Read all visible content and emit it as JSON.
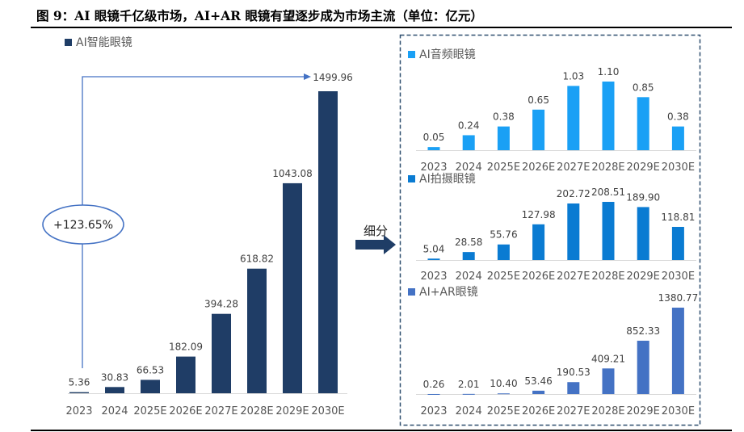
{
  "title": "图 9：AI 眼镜千亿级市场，AI+AR 眼镜有望逐步成为市场主流（单位：亿元）",
  "growth_label": "+123.65%",
  "breakdown_label": "细分",
  "chart_data": [
    {
      "type": "bar",
      "categories": [
        "2023",
        "2024",
        "2025E",
        "2026E",
        "2027E",
        "2028E",
        "2029E",
        "2030E"
      ],
      "series": [
        {
          "name": "AI智能眼镜",
          "values": [
            5.36,
            30.83,
            66.53,
            182.09,
            394.28,
            618.82,
            1043.08,
            1499.96
          ],
          "labels": [
            "5.36",
            "30.83",
            "66.53",
            "182.09",
            "394.28",
            "618.82",
            "1043.08",
            "1499.96"
          ]
        }
      ],
      "color": "#1F3D66",
      "annotation": "+123.65%",
      "grid": false,
      "legend": "top-left"
    },
    {
      "type": "bar",
      "categories": [
        "2023",
        "2024",
        "2025E",
        "2026E",
        "2027E",
        "2028E",
        "2029E",
        "2030E"
      ],
      "series": [
        {
          "name": "AI音频眼镜",
          "values": [
            0.05,
            0.24,
            0.38,
            0.65,
            1.03,
            1.1,
            0.85,
            0.38
          ],
          "labels": [
            "0.05",
            "0.24",
            "0.38",
            "0.65",
            "1.03",
            "1.10",
            "0.85",
            "0.38"
          ]
        }
      ],
      "color": "#1AA0F5",
      "grid": false,
      "legend": "top-left"
    },
    {
      "type": "bar",
      "categories": [
        "2023",
        "2024",
        "2025E",
        "2026E",
        "2027E",
        "2028E",
        "2029E",
        "2030E"
      ],
      "series": [
        {
          "name": "AI拍摄眼镜",
          "values": [
            5.04,
            28.58,
            55.76,
            127.98,
            202.72,
            208.51,
            189.9,
            118.81
          ],
          "labels": [
            "5.04",
            "28.58",
            "55.76",
            "127.98",
            "202.72",
            "208.51",
            "189.90",
            "118.81"
          ]
        }
      ],
      "color": "#0A7BD2",
      "grid": false,
      "legend": "top-left"
    },
    {
      "type": "bar",
      "categories": [
        "2023",
        "2024",
        "2025E",
        "2026E",
        "2027E",
        "2028E",
        "2029E",
        "2030E"
      ],
      "series": [
        {
          "name": "AI+AR眼镜",
          "values": [
            0.26,
            2.01,
            10.4,
            53.46,
            190.53,
            409.21,
            852.33,
            1380.77
          ],
          "labels": [
            "0.26",
            "2.01",
            "10.40",
            "53.46",
            "190.53",
            "409.21",
            "852.33",
            "1380.77"
          ]
        }
      ],
      "color": "#4472C4",
      "grid": false,
      "legend": "top-left"
    }
  ]
}
